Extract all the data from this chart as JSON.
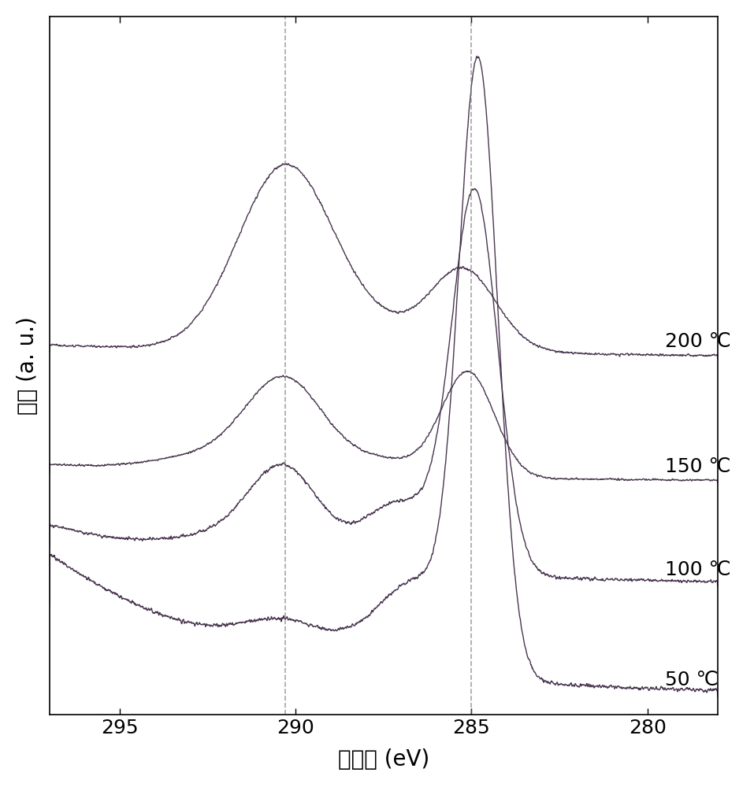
{
  "xlabel": "结合能 (eV)",
  "ylabel": "强度 (a. u.)",
  "xlim": [
    297,
    278
  ],
  "xticks": [
    295,
    290,
    285,
    280
  ],
  "x_range": [
    278,
    297
  ],
  "vline1": 290.3,
  "vline2": 285.0,
  "labels": [
    "50 ℃",
    "100 ℃",
    "150 ℃",
    "200 ℃"
  ],
  "line_color": "#4a3550",
  "dashed_color1": "#808080",
  "dashed_color2": "#808080",
  "background_color": "#ffffff",
  "label_fontsize": 20,
  "tick_fontsize": 18,
  "annot_fontsize": 18
}
